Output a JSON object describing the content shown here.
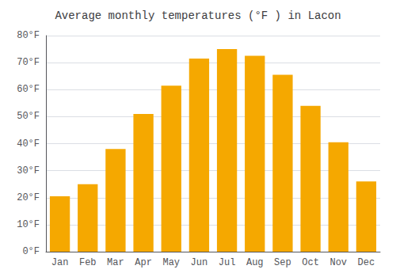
{
  "chart_data": {
    "type": "bar",
    "title": "Average monthly temperatures (°F ) in Lacon",
    "categories": [
      "Jan",
      "Feb",
      "Mar",
      "Apr",
      "May",
      "Jun",
      "Jul",
      "Aug",
      "Sep",
      "Oct",
      "Nov",
      "Dec"
    ],
    "values": [
      20.5,
      25.0,
      38.0,
      51.0,
      61.5,
      71.5,
      75.0,
      72.5,
      65.5,
      54.0,
      40.5,
      26.0
    ],
    "color": "#F5A800",
    "ylim": [
      0,
      80
    ],
    "yticks": [
      {
        "value": 0,
        "label": "0°F"
      },
      {
        "value": 10,
        "label": "10°F"
      },
      {
        "value": 20,
        "label": "20°F"
      },
      {
        "value": 30,
        "label": "30°F"
      },
      {
        "value": 40,
        "label": "40°F"
      },
      {
        "value": 50,
        "label": "50°F"
      },
      {
        "value": 60,
        "label": "60°F"
      },
      {
        "value": 70,
        "label": "70°F"
      },
      {
        "value": 80,
        "label": "80°F"
      }
    ],
    "grid": true
  }
}
